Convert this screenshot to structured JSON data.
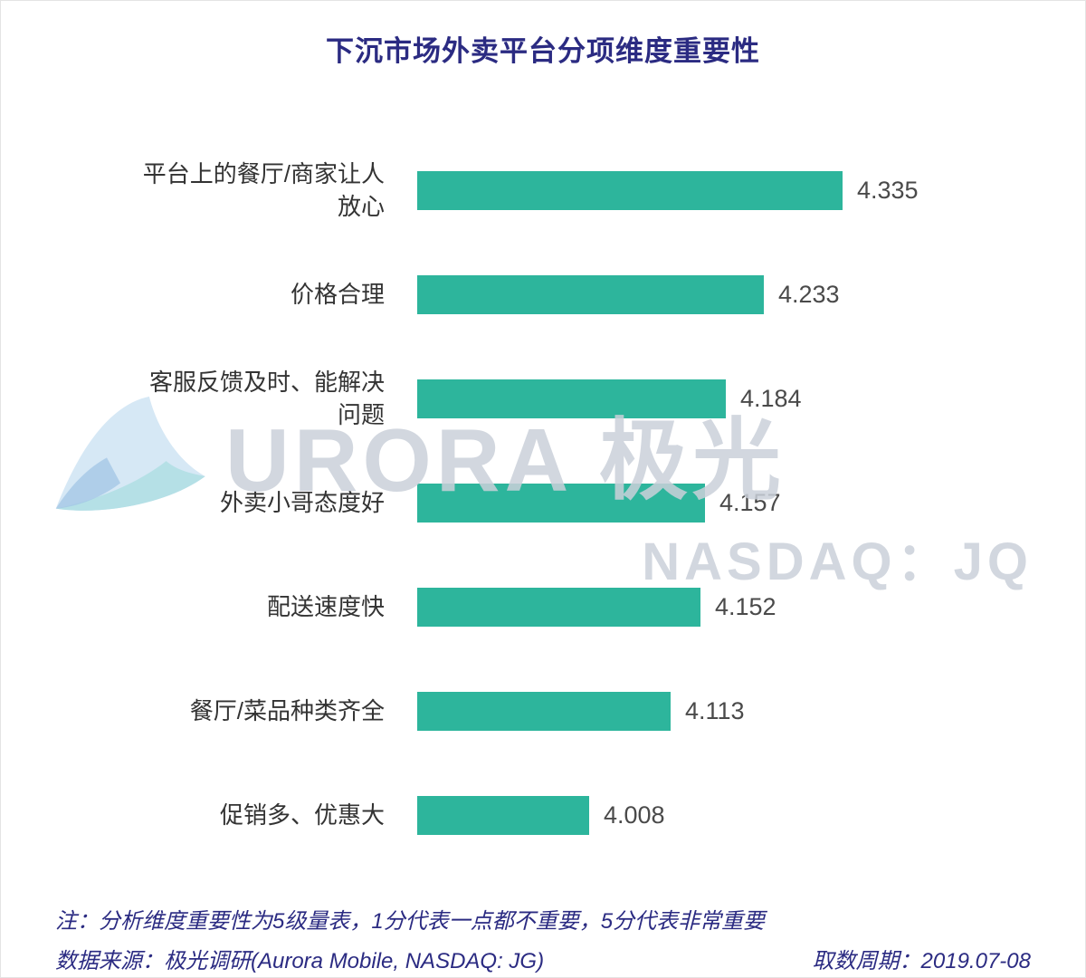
{
  "page": {
    "title": "下沉市场外卖平台分项维度重要性"
  },
  "chart_data": {
    "type": "bar",
    "orientation": "horizontal",
    "title": "下沉市场外卖平台分项维度重要性",
    "categories": [
      "平台上的餐厅/商家让人放心",
      "价格合理",
      "客服反馈及时、能解决问题",
      "外卖小哥态度好",
      "配送速度快",
      "餐厅/菜品种类齐全",
      "促销多、优惠大"
    ],
    "values": [
      4.335,
      4.233,
      4.184,
      4.157,
      4.152,
      4.113,
      4.008
    ],
    "value_labels": [
      "4.335",
      "4.233",
      "4.184",
      "4.157",
      "4.152",
      "4.113",
      "4.008"
    ],
    "bar_color": "#2db59c",
    "axis": {
      "hidden": true,
      "implied_min": 3.786,
      "note": "no visible axis; bar lengths are not zero-based, proportional to value minus ~3.79"
    }
  },
  "watermark": {
    "wordmark": "URORA 极光",
    "ticker": "NASDAQ：JQ",
    "logo_icon": "aurora-logo"
  },
  "notes": {
    "scale_note": "注：分析维度重要性为5级量表，1分代表一点都不重要，5分代表非常重要",
    "source": "数据来源：极光调研(Aurora Mobile, NASDAQ: JG)",
    "period": "取数周期：2019.07-08"
  },
  "colors": {
    "title": "#2b2b82",
    "bar": "#2db59c",
    "category_text": "#333333",
    "value_text": "#4a4a4a",
    "note_text": "#2b2b82",
    "watermark_text": "#cbd1da"
  }
}
